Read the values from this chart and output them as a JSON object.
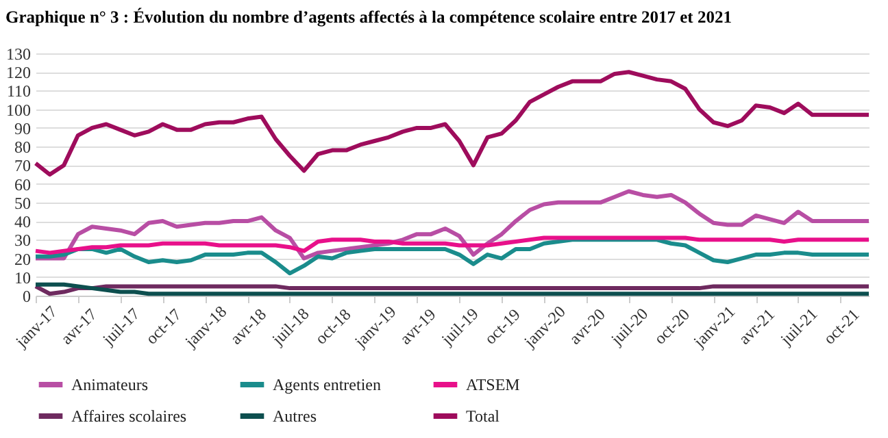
{
  "chart_data": {
    "type": "line",
    "title": "Graphique n° 3 :  Évolution du nombre d’agents affectés à la compétence scolaire entre 2017 et 2021",
    "categories": [
      "janv-17",
      null,
      null,
      "avr-17",
      null,
      null,
      "juil-17",
      null,
      null,
      "oct-17",
      null,
      null,
      "janv-18",
      null,
      null,
      "avr-18",
      null,
      null,
      "juil-18",
      null,
      null,
      "oct-18",
      null,
      null,
      "janv-19",
      null,
      null,
      "avr-19",
      null,
      null,
      "juil-19",
      null,
      null,
      "oct-19",
      null,
      null,
      "janv-20",
      null,
      null,
      "avr-20",
      null,
      null,
      "juil-20",
      null,
      null,
      "oct-20",
      null,
      null,
      "janv-21",
      null,
      null,
      "avr-21",
      null,
      null,
      "juil-21",
      null,
      null,
      "oct-21",
      null,
      null
    ],
    "series": [
      {
        "name": "Animateurs",
        "color": "#b84ea4",
        "values": [
          20,
          20,
          20,
          33,
          37,
          36,
          35,
          33,
          39,
          40,
          37,
          38,
          39,
          39,
          40,
          40,
          42,
          35,
          31,
          20,
          23,
          24,
          25,
          26,
          27,
          28,
          30,
          33,
          33,
          36,
          32,
          22,
          28,
          33,
          40,
          46,
          49,
          50,
          50,
          50,
          50,
          53,
          56,
          54,
          53,
          54,
          50,
          44,
          39,
          38,
          38,
          43,
          41,
          39,
          45,
          40,
          40,
          40,
          40,
          40
        ]
      },
      {
        "name": "Agents entretien",
        "color": "#1a8c8c",
        "values": [
          21,
          21,
          22,
          25,
          25,
          23,
          25,
          21,
          18,
          19,
          18,
          19,
          22,
          22,
          22,
          23,
          23,
          18,
          12,
          16,
          21,
          20,
          23,
          24,
          25,
          25,
          25,
          25,
          25,
          25,
          22,
          17,
          22,
          20,
          25,
          25,
          28,
          29,
          30,
          30,
          30,
          30,
          30,
          30,
          30,
          28,
          27,
          23,
          19,
          18,
          20,
          22,
          22,
          23,
          23,
          22,
          22,
          22,
          22,
          22
        ]
      },
      {
        "name": "ATSEM",
        "color": "#e8108a",
        "values": [
          24,
          23,
          24,
          25,
          26,
          26,
          27,
          27,
          27,
          28,
          28,
          28,
          28,
          27,
          27,
          27,
          27,
          27,
          26,
          24,
          29,
          30,
          30,
          30,
          29,
          29,
          28,
          28,
          28,
          28,
          27,
          27,
          27,
          28,
          29,
          30,
          31,
          31,
          31,
          31,
          31,
          31,
          31,
          31,
          31,
          31,
          31,
          30,
          30,
          30,
          30,
          30,
          30,
          29,
          30,
          30,
          30,
          30,
          30,
          30
        ]
      },
      {
        "name": "Affaires scolaires",
        "color": "#6e2a5f",
        "values": [
          5,
          1,
          2,
          4,
          4,
          5,
          5,
          5,
          5,
          5,
          5,
          5,
          5,
          5,
          5,
          5,
          5,
          5,
          4,
          4,
          4,
          4,
          4,
          4,
          4,
          4,
          4,
          4,
          4,
          4,
          4,
          4,
          4,
          4,
          4,
          4,
          4,
          4,
          4,
          4,
          4,
          4,
          4,
          4,
          4,
          4,
          4,
          4,
          5,
          5,
          5,
          5,
          5,
          5,
          5,
          5,
          5,
          5,
          5,
          5
        ]
      },
      {
        "name": "Autres",
        "color": "#0d4f4f",
        "values": [
          6,
          6,
          6,
          5,
          4,
          3,
          2,
          2,
          1,
          1,
          1,
          1,
          1,
          1,
          1,
          1,
          1,
          1,
          1,
          1,
          1,
          1,
          1,
          1,
          1,
          1,
          1,
          1,
          1,
          1,
          1,
          1,
          1,
          1,
          1,
          1,
          1,
          1,
          1,
          1,
          1,
          1,
          1,
          1,
          1,
          1,
          1,
          1,
          1,
          1,
          1,
          1,
          1,
          1,
          1,
          1,
          1,
          1,
          1,
          1
        ]
      },
      {
        "name": "Total",
        "color": "#9e0c5c",
        "values": [
          71,
          65,
          70,
          86,
          90,
          92,
          89,
          86,
          88,
          92,
          89,
          89,
          92,
          93,
          93,
          95,
          96,
          84,
          75,
          67,
          76,
          78,
          78,
          81,
          83,
          85,
          88,
          90,
          90,
          92,
          83,
          70,
          85,
          87,
          94,
          104,
          108,
          112,
          115,
          115,
          115,
          119,
          120,
          118,
          116,
          115,
          111,
          100,
          93,
          91,
          94,
          102,
          101,
          98,
          103,
          97,
          97,
          97,
          97,
          97
        ]
      }
    ],
    "ylim": [
      0,
      130
    ],
    "yticks": [
      0,
      10,
      20,
      30,
      40,
      50,
      60,
      70,
      80,
      90,
      100,
      110,
      120,
      130
    ],
    "grid": "y",
    "legend": "bottom",
    "line_style": "solid",
    "marker": "none"
  }
}
